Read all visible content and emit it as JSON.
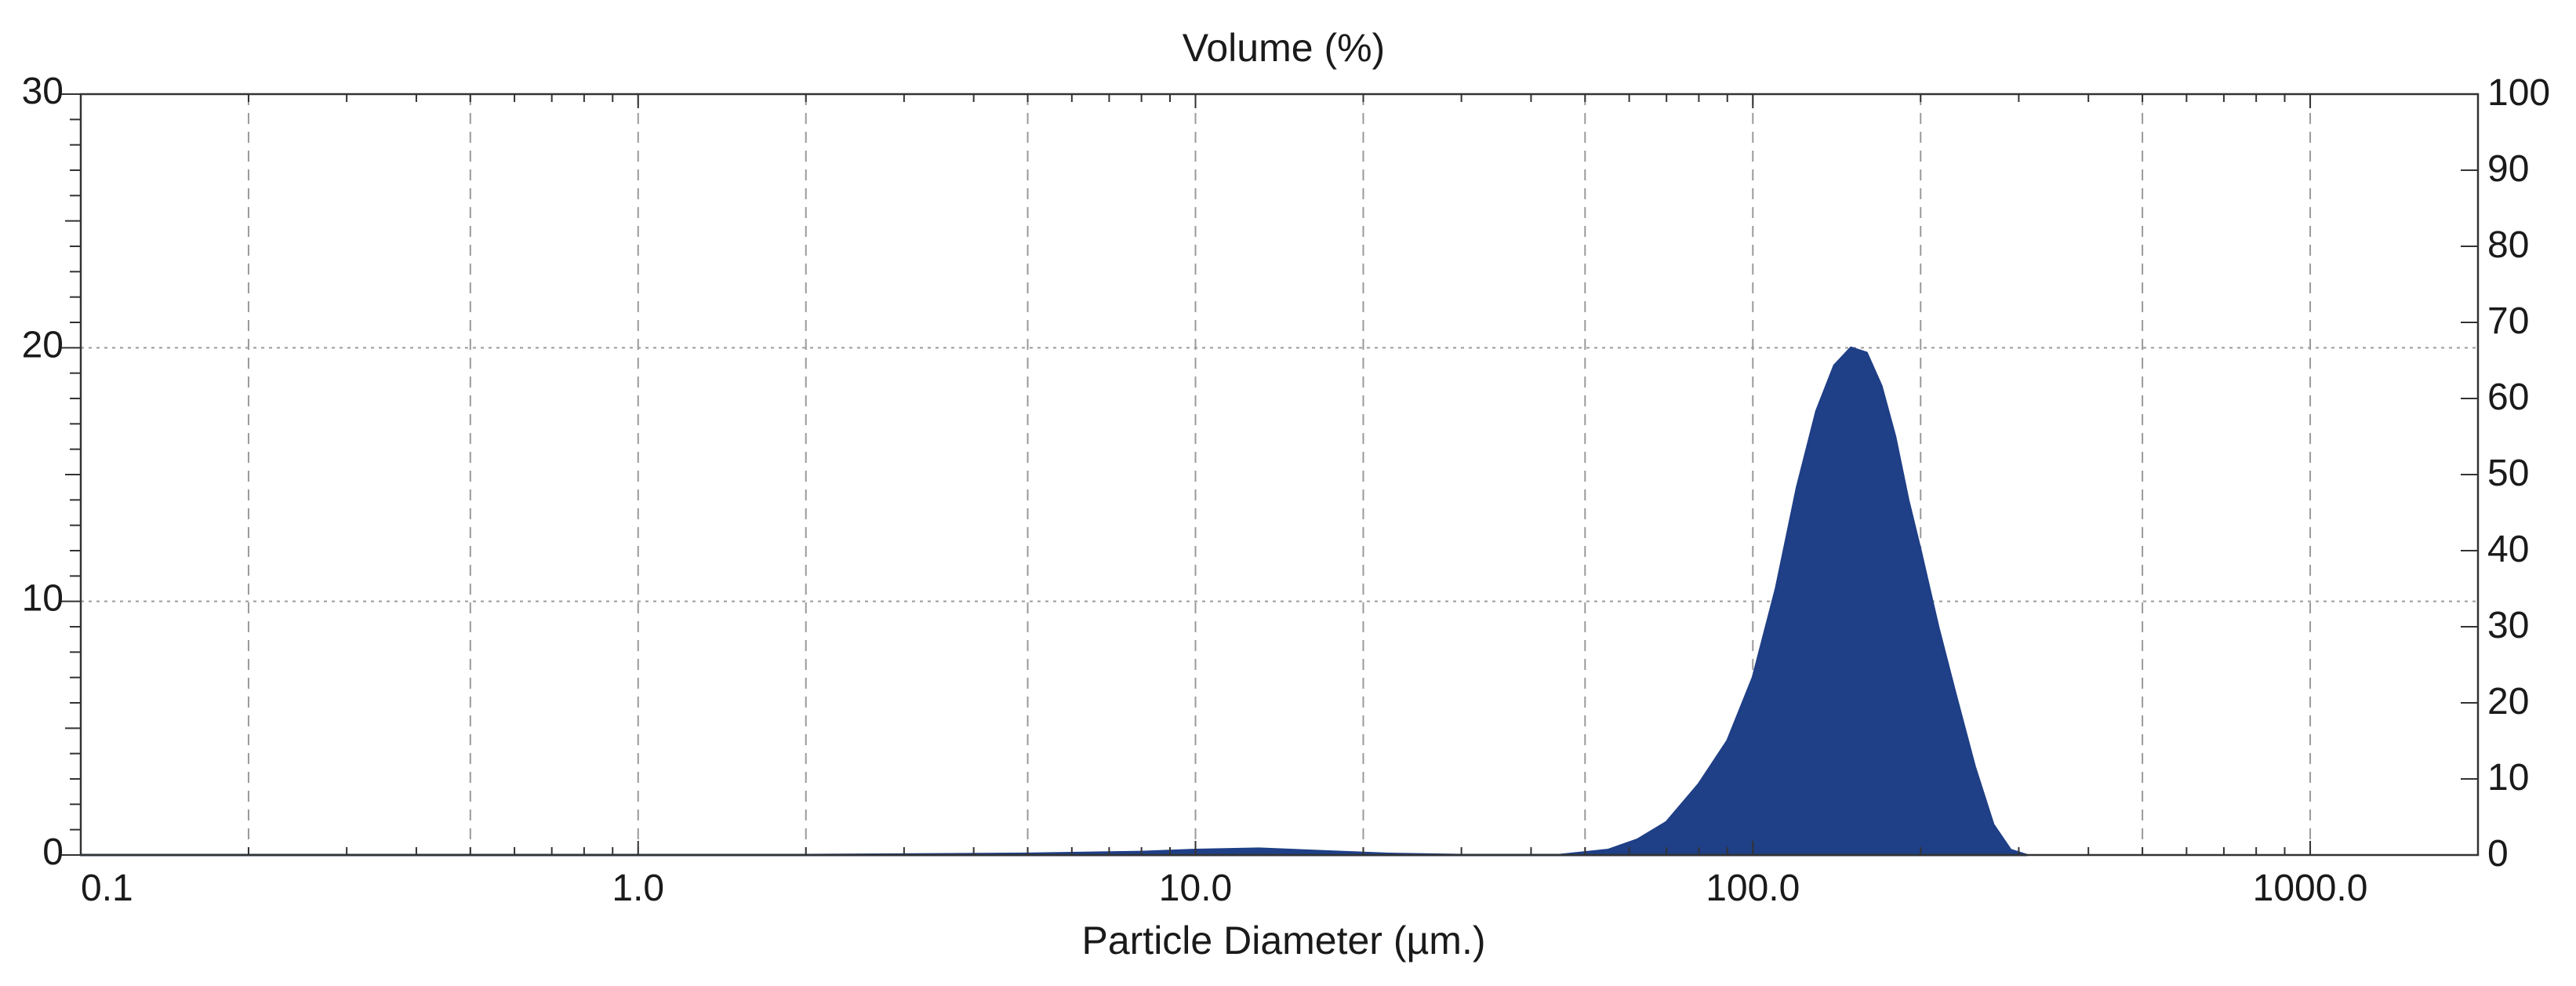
{
  "chart_data": {
    "type": "area",
    "title": "Volume (%)",
    "xlabel": "Particle Diameter (µm.)",
    "ylabel": "",
    "x_scale": "log",
    "xlim": [
      0.1,
      2000
    ],
    "ylim": [
      0,
      30
    ],
    "y2lim": [
      0,
      100
    ],
    "grid": true,
    "x_tick_labels": [
      {
        "value": 0.1,
        "label": "0.1"
      },
      {
        "value": 1,
        "label": "1.0"
      },
      {
        "value": 10,
        "label": "10.0"
      },
      {
        "value": 100,
        "label": "100.0"
      },
      {
        "value": 1000,
        "label": "1000.0"
      }
    ],
    "x_grid_values": [
      0.2,
      0.5,
      1,
      2,
      5,
      10,
      20,
      50,
      100,
      200,
      500,
      1000
    ],
    "y_ticks": [
      {
        "value": 0,
        "label": "0"
      },
      {
        "value": 10,
        "label": "10"
      },
      {
        "value": 20,
        "label": "20"
      },
      {
        "value": 30,
        "label": "30"
      }
    ],
    "y2_ticks": [
      {
        "value": 0,
        "label": "0"
      },
      {
        "value": 10,
        "label": "10"
      },
      {
        "value": 20,
        "label": "20"
      },
      {
        "value": 30,
        "label": "30"
      },
      {
        "value": 40,
        "label": "40"
      },
      {
        "value": 50,
        "label": "50"
      },
      {
        "value": 60,
        "label": "60"
      },
      {
        "value": 70,
        "label": "70"
      },
      {
        "value": 80,
        "label": "80"
      },
      {
        "value": 90,
        "label": "90"
      },
      {
        "value": 100,
        "label": "100"
      }
    ],
    "series": [
      {
        "color": "#1f3f86",
        "x": [
          0.1,
          2,
          5,
          8,
          10,
          13,
          17,
          22,
          30,
          45,
          55,
          62,
          70,
          80,
          90,
          100,
          110,
          120,
          130,
          140,
          150,
          160,
          170,
          180,
          190,
          200,
          215,
          230,
          250,
          270,
          290,
          310
        ],
        "y": [
          0,
          0,
          0.05,
          0.12,
          0.2,
          0.25,
          0.15,
          0.05,
          0,
          0,
          0.2,
          0.6,
          1.3,
          2.8,
          4.5,
          7.0,
          10.5,
          14.5,
          17.5,
          19.3,
          20.0,
          19.8,
          18.5,
          16.5,
          14.0,
          12.0,
          9.0,
          6.5,
          3.5,
          1.2,
          0.2,
          0
        ]
      }
    ]
  }
}
